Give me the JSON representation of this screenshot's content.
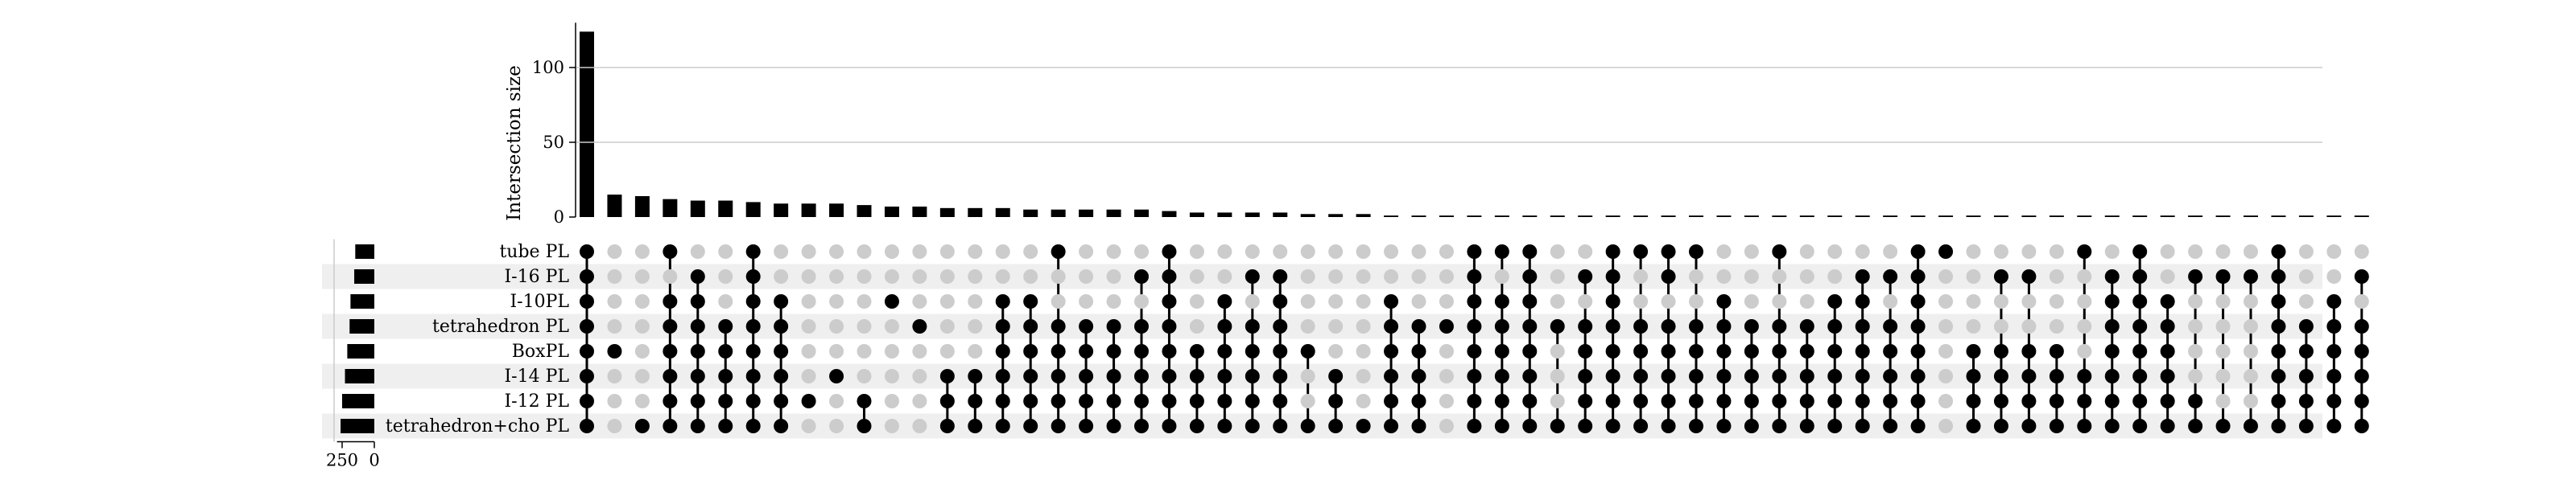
{
  "chart_data": {
    "type": "upset",
    "ylabel": "Intersection size",
    "yticks": [
      0,
      50,
      100
    ],
    "ylim": [
      0,
      130
    ],
    "setsize_ticks": [
      250,
      0
    ],
    "setsize_lim": [
      0,
      290
    ],
    "sets": [
      "tube PL",
      "I-16 PL",
      "I-10PL",
      "tetrahedron PL",
      "BoxPL",
      "I-14 PL",
      "I-12 PL",
      "tetrahedron+cho PL"
    ],
    "set_sizes": [
      148,
      156,
      185,
      192,
      210,
      228,
      250,
      262
    ],
    "intersections": [
      {
        "size": 124,
        "members": [
          0,
          1,
          2,
          3,
          4,
          5,
          6,
          7
        ]
      },
      {
        "size": 15,
        "members": [
          4
        ]
      },
      {
        "size": 14,
        "members": [
          7
        ]
      },
      {
        "size": 12,
        "members": [
          0,
          2,
          3,
          4,
          5,
          6,
          7
        ]
      },
      {
        "size": 11,
        "members": [
          1,
          2,
          3,
          4,
          5,
          6,
          7
        ]
      },
      {
        "size": 11,
        "members": [
          3,
          4,
          5,
          6,
          7
        ]
      },
      {
        "size": 10,
        "members": [
          0,
          1,
          2,
          3,
          4,
          5,
          6,
          7
        ]
      },
      {
        "size": 9,
        "members": [
          2,
          3,
          4,
          5,
          6,
          7
        ]
      },
      {
        "size": 9,
        "members": [
          6
        ]
      },
      {
        "size": 9,
        "members": [
          5
        ]
      },
      {
        "size": 8,
        "members": [
          6,
          7
        ]
      },
      {
        "size": 7,
        "members": [
          2
        ]
      },
      {
        "size": 7,
        "members": [
          3
        ]
      },
      {
        "size": 6,
        "members": [
          5,
          6,
          7
        ]
      },
      {
        "size": 6,
        "members": [
          5,
          6,
          7
        ]
      },
      {
        "size": 6,
        "members": [
          2,
          3,
          4,
          5,
          6,
          7
        ]
      },
      {
        "size": 5,
        "members": [
          2,
          3,
          4,
          5,
          6,
          7
        ]
      },
      {
        "size": 5,
        "members": [
          0,
          3,
          4,
          5,
          6,
          7
        ]
      },
      {
        "size": 5,
        "members": [
          3,
          4,
          5,
          6,
          7
        ]
      },
      {
        "size": 5,
        "members": [
          3,
          4,
          5,
          6,
          7
        ]
      },
      {
        "size": 5,
        "members": [
          1,
          3,
          4,
          5,
          6,
          7
        ]
      },
      {
        "size": 4,
        "members": [
          0,
          1,
          2,
          3,
          4,
          5,
          6,
          7
        ]
      },
      {
        "size": 3,
        "members": [
          4,
          5,
          6,
          7
        ]
      },
      {
        "size": 3,
        "members": [
          2,
          3,
          4,
          5,
          6,
          7
        ]
      },
      {
        "size": 3,
        "members": [
          1,
          3,
          4,
          5,
          6,
          7
        ]
      },
      {
        "size": 3,
        "members": [
          1,
          2,
          3,
          4,
          5,
          6,
          7
        ]
      },
      {
        "size": 2,
        "members": [
          4,
          7
        ]
      },
      {
        "size": 2,
        "members": [
          5,
          6,
          7
        ]
      },
      {
        "size": 2,
        "members": [
          7
        ]
      },
      {
        "size": 1,
        "members": [
          2,
          3,
          4,
          5,
          6,
          7
        ]
      },
      {
        "size": 1,
        "members": [
          3,
          4,
          5,
          6,
          7
        ]
      },
      {
        "size": 1,
        "members": [
          3
        ]
      },
      {
        "size": 1,
        "members": [
          0,
          1,
          2,
          3,
          4,
          5,
          6,
          7
        ]
      },
      {
        "size": 1,
        "members": [
          0,
          2,
          3,
          4,
          5,
          6,
          7
        ]
      },
      {
        "size": 1,
        "members": [
          0,
          1,
          2,
          3,
          4,
          5,
          6,
          7
        ]
      },
      {
        "size": 1,
        "members": [
          3,
          7
        ]
      },
      {
        "size": 1,
        "members": [
          1,
          3,
          4,
          5,
          6,
          7
        ]
      },
      {
        "size": 1,
        "members": [
          0,
          1,
          2,
          3,
          4,
          5,
          6,
          7
        ]
      },
      {
        "size": 1,
        "members": [
          0,
          3,
          4,
          5,
          6,
          7
        ]
      },
      {
        "size": 1,
        "members": [
          0,
          1,
          3,
          4,
          5,
          6,
          7
        ]
      },
      {
        "size": 1,
        "members": [
          0,
          3,
          4,
          5,
          6,
          7
        ]
      },
      {
        "size": 1,
        "members": [
          2,
          3,
          4,
          5,
          6,
          7
        ]
      },
      {
        "size": 1,
        "members": [
          3,
          4,
          5,
          6,
          7
        ]
      },
      {
        "size": 1,
        "members": [
          0,
          3,
          4,
          5,
          6,
          7
        ]
      },
      {
        "size": 1,
        "members": [
          3,
          4,
          5,
          6,
          7
        ]
      },
      {
        "size": 1,
        "members": [
          2,
          3,
          4,
          5,
          6,
          7
        ]
      },
      {
        "size": 1,
        "members": [
          1,
          2,
          3,
          4,
          5,
          6,
          7
        ]
      },
      {
        "size": 1,
        "members": [
          1,
          3,
          4,
          5,
          6,
          7
        ]
      },
      {
        "size": 1,
        "members": [
          0,
          1,
          2,
          3,
          4,
          5,
          6,
          7
        ]
      },
      {
        "size": 1,
        "members": [
          0
        ]
      },
      {
        "size": 1,
        "members": [
          4,
          5,
          6,
          7
        ]
      },
      {
        "size": 1,
        "members": [
          1,
          4,
          5,
          6,
          7
        ]
      },
      {
        "size": 1,
        "members": [
          1,
          4,
          5,
          6,
          7
        ]
      },
      {
        "size": 1,
        "members": [
          4,
          5,
          6,
          7
        ]
      },
      {
        "size": 1,
        "members": [
          0,
          5,
          6,
          7
        ]
      },
      {
        "size": 1,
        "members": [
          1,
          2,
          3,
          4,
          5,
          6,
          7
        ]
      },
      {
        "size": 1,
        "members": [
          0,
          1,
          2,
          3,
          4,
          5,
          6,
          7
        ]
      },
      {
        "size": 1,
        "members": [
          2,
          3,
          4,
          5,
          6,
          7
        ]
      },
      {
        "size": 1,
        "members": [
          1,
          6,
          7
        ]
      },
      {
        "size": 1,
        "members": [
          1,
          7
        ]
      },
      {
        "size": 1,
        "members": [
          1,
          7
        ]
      },
      {
        "size": 1,
        "members": [
          0,
          1,
          2,
          3,
          4,
          5,
          6,
          7
        ]
      },
      {
        "size": 1,
        "members": [
          3,
          4,
          5,
          6,
          7
        ]
      },
      {
        "size": 1,
        "members": [
          2,
          3,
          4,
          5,
          6,
          7
        ]
      },
      {
        "size": 1,
        "members": [
          1,
          3,
          4,
          5,
          6,
          7
        ]
      }
    ]
  }
}
